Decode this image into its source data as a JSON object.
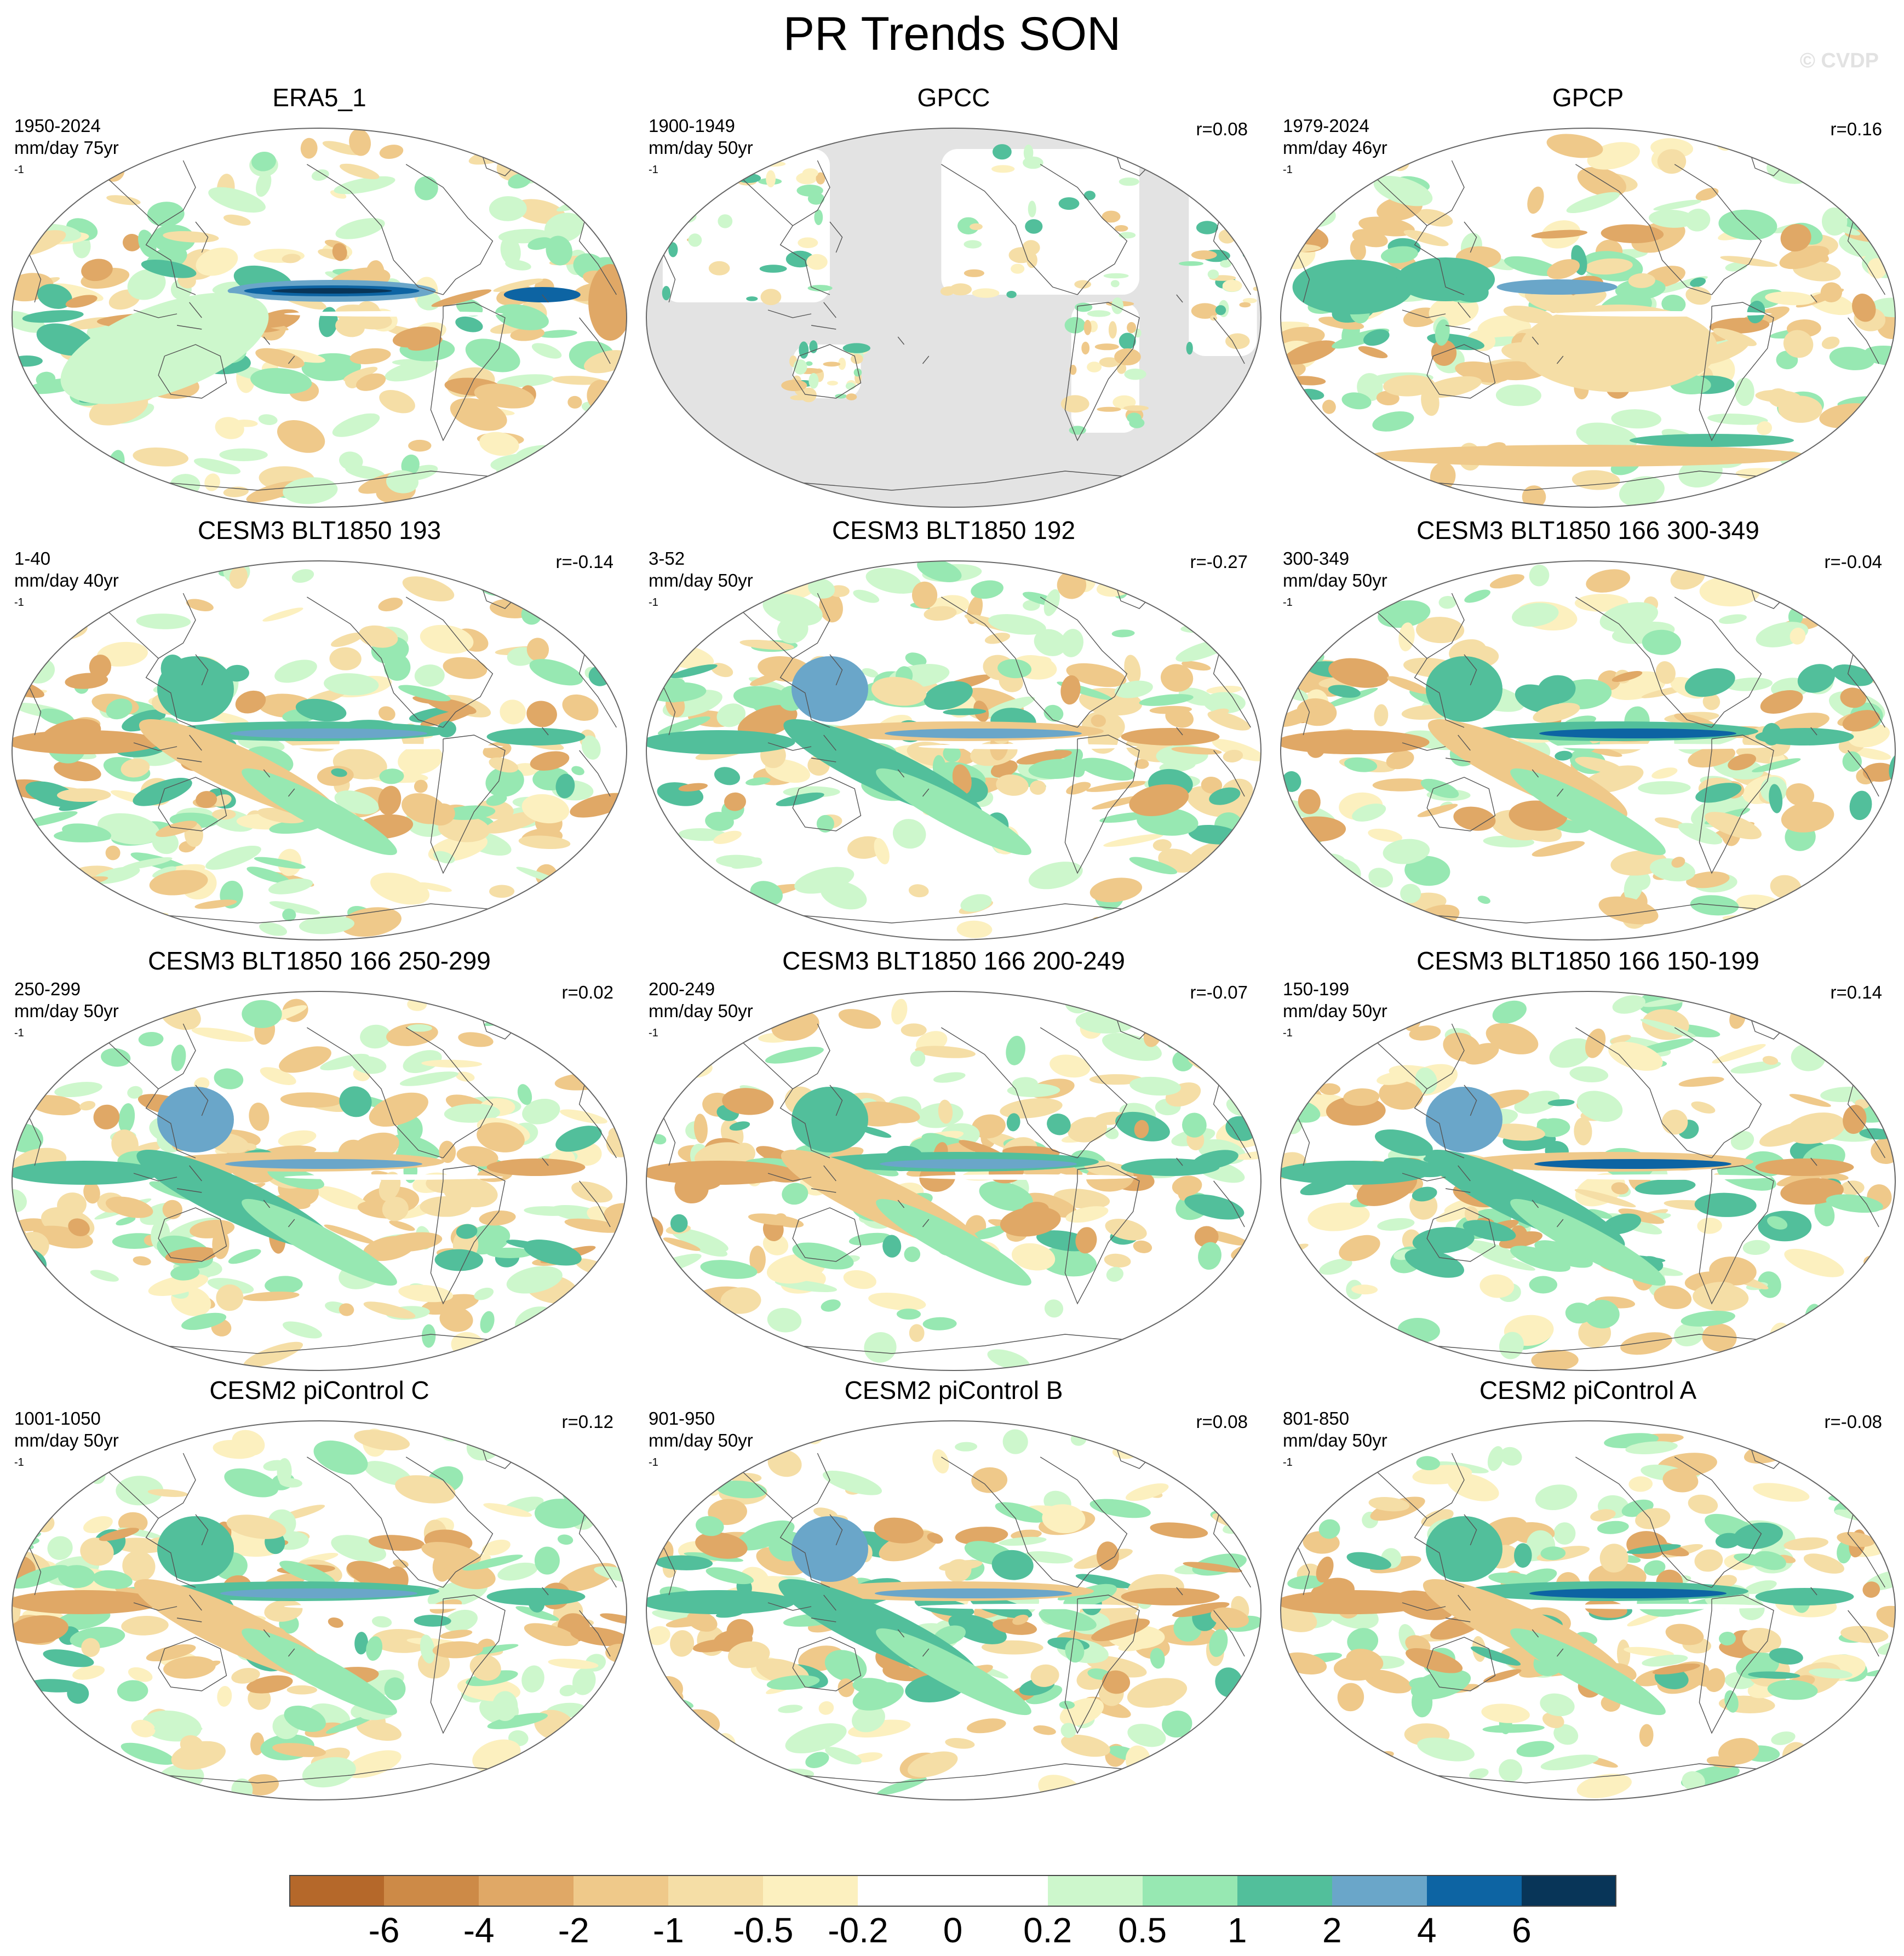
{
  "figure": {
    "title": "PR Trends SON",
    "watermark": "© CVDP"
  },
  "panels": [
    {
      "title": "ERA5_1",
      "period": "1950-2024",
      "units": "mm/day 75yr",
      "units_exp": "-1",
      "corr": "",
      "variant": "era5"
    },
    {
      "title": "GPCC",
      "period": "1900-1949",
      "units": "mm/day 50yr",
      "units_exp": "-1",
      "corr": "r=0.08",
      "variant": "gpcc"
    },
    {
      "title": "GPCP",
      "period": "1979-2024",
      "units": "mm/day 46yr",
      "units_exp": "-1",
      "corr": "r=0.16",
      "variant": "gpcp"
    },
    {
      "title": "CESM3 BLT1850 193",
      "period": "1-40",
      "units": "mm/day 40yr",
      "units_exp": "-1",
      "corr": "r=-0.14",
      "variant": "m1"
    },
    {
      "title": "CESM3 BLT1850 192",
      "period": "3-52",
      "units": "mm/day 50yr",
      "units_exp": "-1",
      "corr": "r=-0.27",
      "variant": "m2"
    },
    {
      "title": "CESM3 BLT1850 166 300-349",
      "period": "300-349",
      "units": "mm/day 50yr",
      "units_exp": "-1",
      "corr": "r=-0.04",
      "variant": "m3"
    },
    {
      "title": "CESM3 BLT1850 166 250-299",
      "period": "250-299",
      "units": "mm/day 50yr",
      "units_exp": "-1",
      "corr": "r=0.02",
      "variant": "m4"
    },
    {
      "title": "CESM3 BLT1850 166 200-249",
      "period": "200-249",
      "units": "mm/day 50yr",
      "units_exp": "-1",
      "corr": "r=-0.07",
      "variant": "m5"
    },
    {
      "title": "CESM3 BLT1850 166 150-199",
      "period": "150-199",
      "units": "mm/day 50yr",
      "units_exp": "-1",
      "corr": "r=0.14",
      "variant": "m6"
    },
    {
      "title": "CESM2 piControl C",
      "period": "1001-1050",
      "units": "mm/day 50yr",
      "units_exp": "-1",
      "corr": "r=0.12",
      "variant": "m7"
    },
    {
      "title": "CESM2 piControl B",
      "period": "901-950",
      "units": "mm/day 50yr",
      "units_exp": "-1",
      "corr": "r=0.08",
      "variant": "m8"
    },
    {
      "title": "CESM2 piControl A",
      "period": "801-850",
      "units": "mm/day 50yr",
      "units_exp": "-1",
      "corr": "r=-0.08",
      "variant": "m9"
    }
  ],
  "colorbar": {
    "colors": [
      "#b5682a",
      "#cd8a47",
      "#e0a866",
      "#efc98a",
      "#f5dea6",
      "#fcf0bf",
      "#ffffff",
      "#ffffff",
      "#cdf7cc",
      "#97e8b2",
      "#52bf9b",
      "#6aa6c9",
      "#0d64a3",
      "#083558"
    ],
    "labels": [
      "-6",
      "-4",
      "-2",
      "-1",
      "-0.5",
      "-0.2",
      "0",
      "0.2",
      "0.5",
      "1",
      "2",
      "4",
      "6"
    ]
  }
}
